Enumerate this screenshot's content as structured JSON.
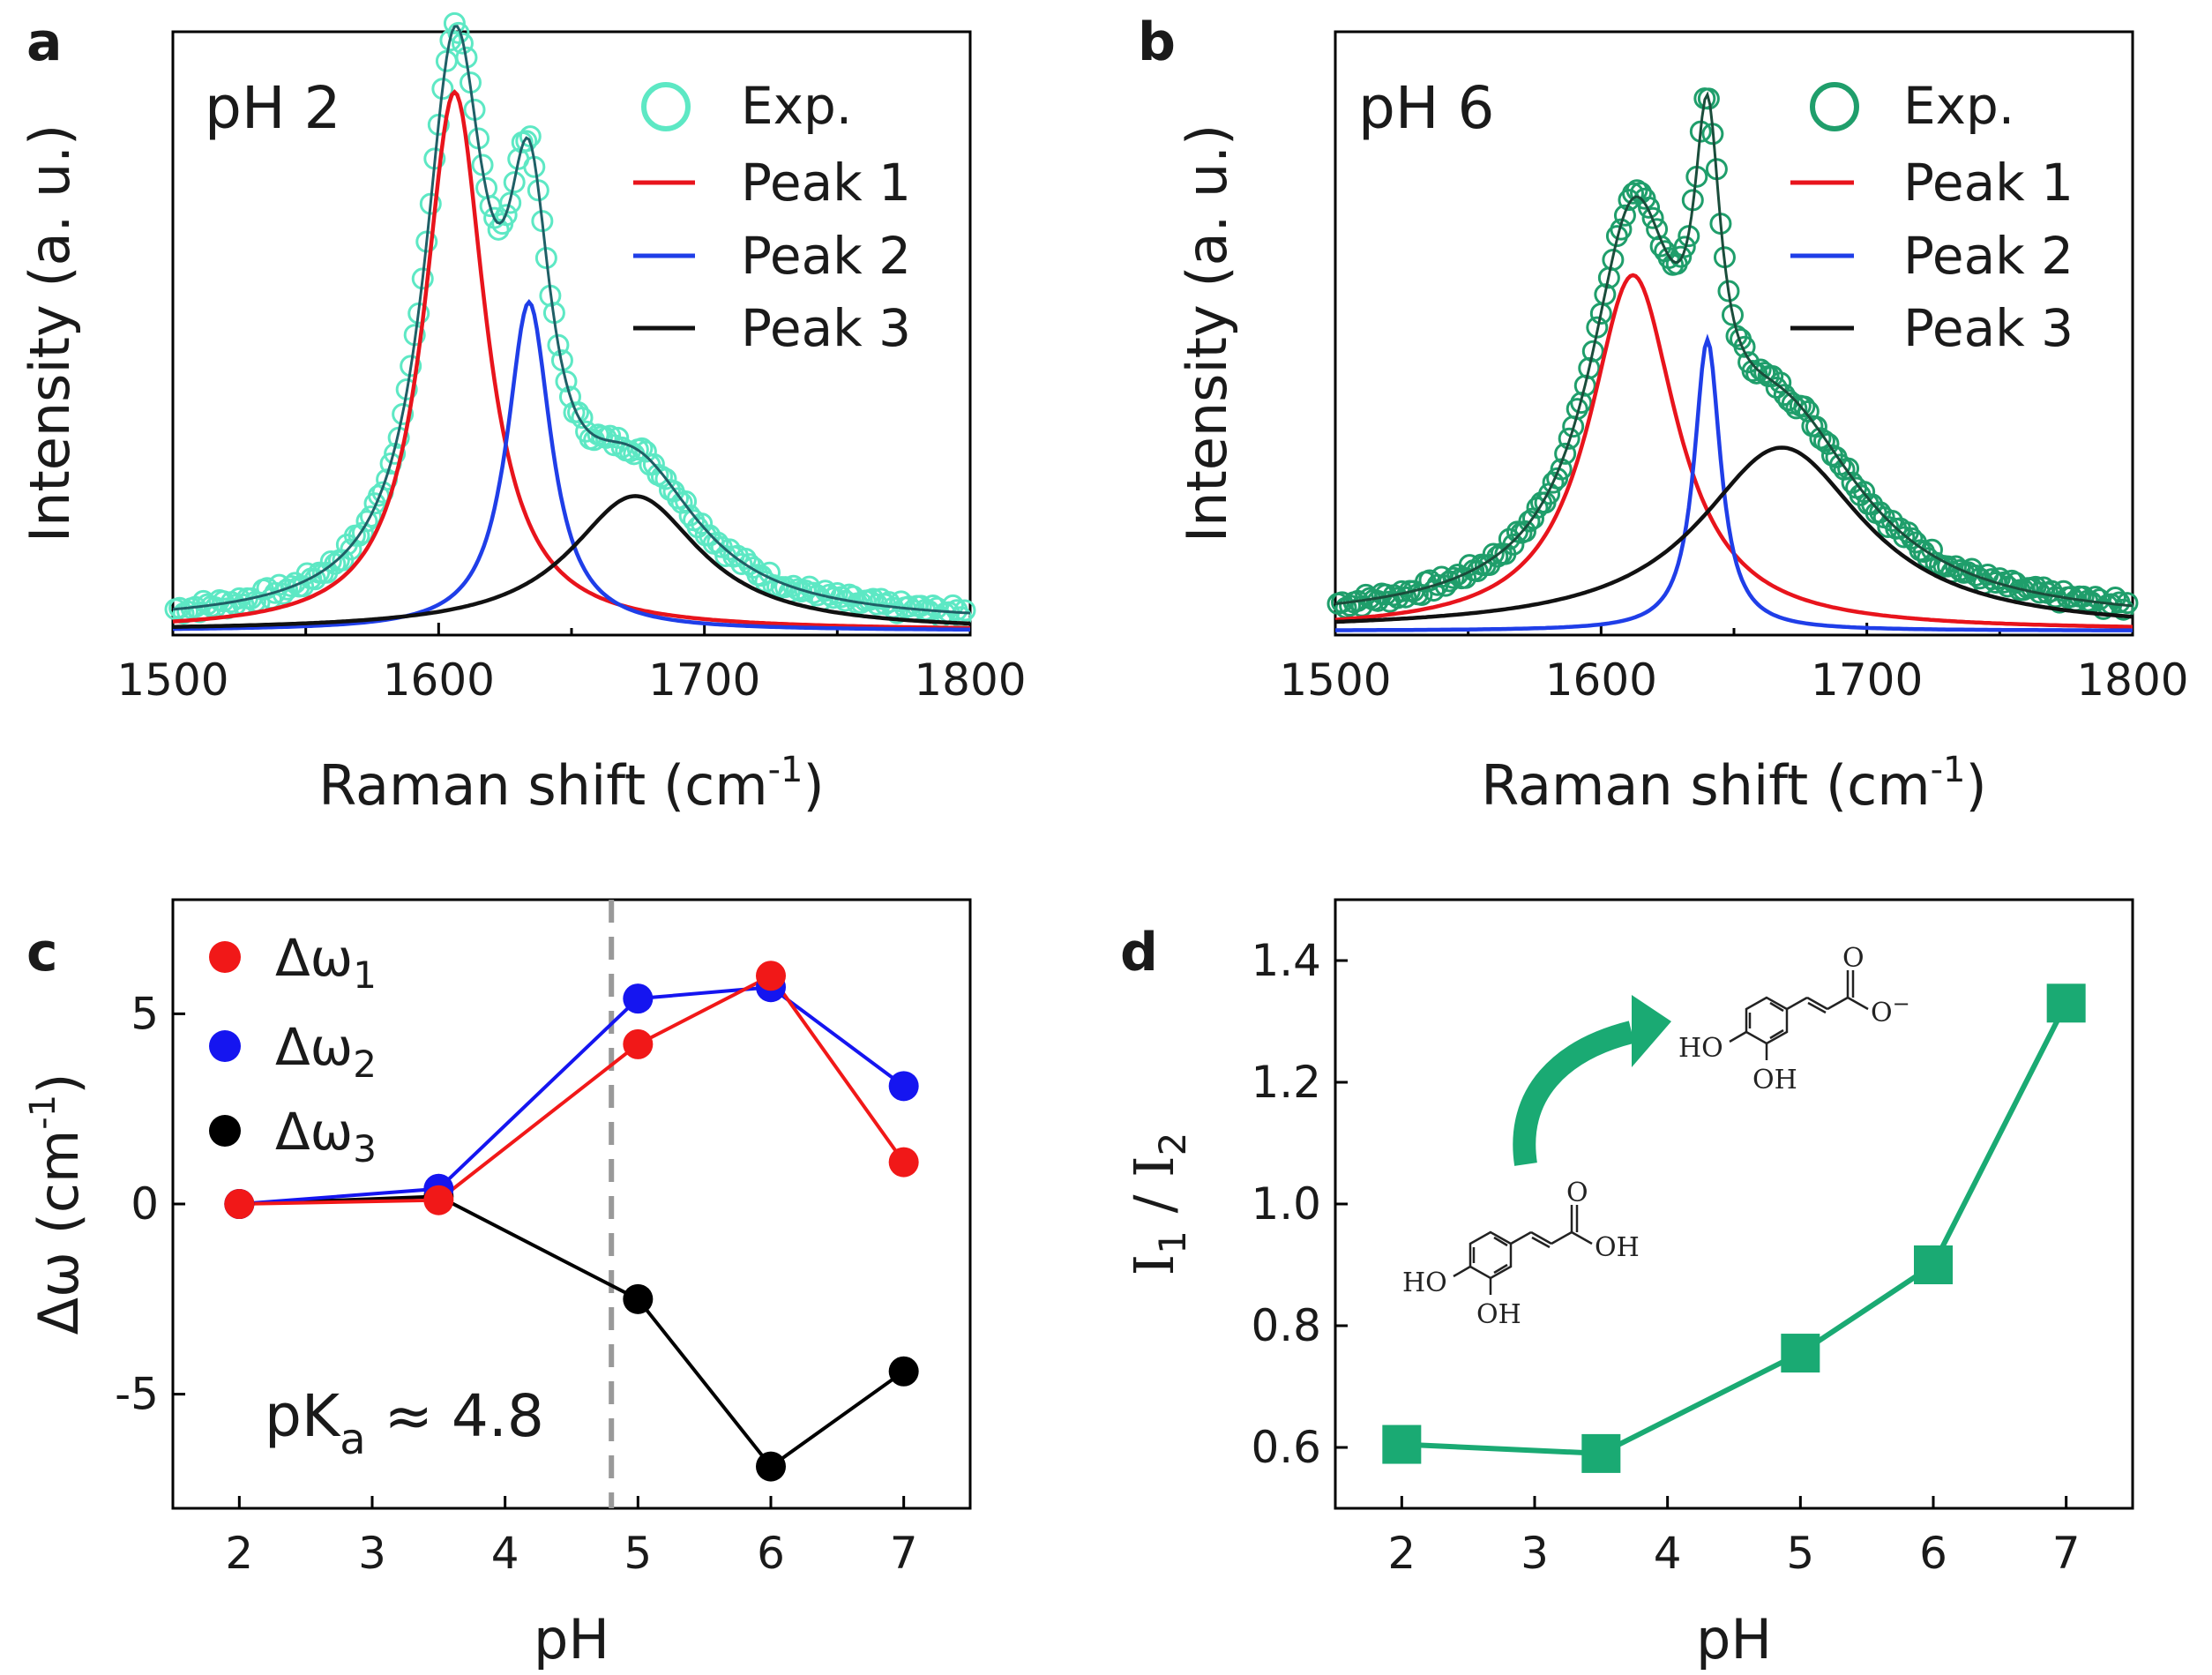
{
  "colors": {
    "exp_a": "#5de8c4",
    "exp_b": "#1f9e6b",
    "fit_a": "#1f5f66",
    "fit_b": "#1a4d3b",
    "peak1": "#e8141c",
    "peak2": "#1f3ee8",
    "peak3": "#111111",
    "green": "#1aaa73",
    "omega1": "#f11818",
    "omega2": "#1515f0",
    "omega3": "#000000",
    "dash": "#999999"
  },
  "chart_data": [
    {
      "panel": "a",
      "type": "line",
      "inset_label": "pH 2",
      "xlabel": "Raman shift (cm",
      "xlabel_sup": "-1",
      "xlabel_end": ")",
      "ylabel": "Intensity (a. u.)",
      "xlim": [
        1500,
        1800
      ],
      "ylim": [
        0,
        1.12
      ],
      "xticks": [
        "1500",
        "1600",
        "1700",
        "1800"
      ],
      "xtick_values": [
        1500,
        1600,
        1700,
        1800
      ],
      "legend": [
        "Exp.",
        "Peak 1",
        "Peak 2",
        "Peak 3"
      ],
      "peaks": [
        {
          "name": "Peak 1",
          "center": 1606,
          "hwhm": 14,
          "amp": 1.0
        },
        {
          "name": "Peak 2",
          "center": 1634,
          "hwhm": 10,
          "amp": 0.61
        },
        {
          "name": "Peak 3",
          "center": 1674,
          "hwhm": 30,
          "amp": 0.25
        }
      ],
      "baseline": 0.02
    },
    {
      "panel": "b",
      "type": "line",
      "inset_label": "pH 6",
      "xlabel": "Raman shift (cm",
      "xlabel_sup": "-1",
      "xlabel_end": ")",
      "ylabel": "Intensity (a. u.)",
      "xlim": [
        1500,
        1800
      ],
      "ylim": [
        0,
        1.12
      ],
      "xticks": [
        "1500",
        "1600",
        "1700",
        "1800"
      ],
      "xtick_values": [
        1500,
        1600,
        1700,
        1800
      ],
      "legend": [
        "Exp.",
        "Peak 1",
        "Peak 2",
        "Peak 3"
      ],
      "peaks": [
        {
          "name": "Peak 1",
          "center": 1612,
          "hwhm": 20,
          "amp": 0.66
        },
        {
          "name": "Peak 2",
          "center": 1640,
          "hwhm": 6,
          "amp": 0.54
        },
        {
          "name": "Peak 3",
          "center": 1668,
          "hwhm": 38,
          "amp": 0.34
        }
      ],
      "baseline": 0.02
    },
    {
      "panel": "c",
      "type": "line",
      "xlabel": "pH",
      "ylabel": "Δω (cm",
      "ylabel_sup": "-1",
      "ylabel_end": ")",
      "xlim": [
        1.5,
        7.5
      ],
      "ylim": [
        -8,
        8
      ],
      "xticks": [
        "2",
        "3",
        "4",
        "5",
        "6",
        "7"
      ],
      "xtick_values": [
        2,
        3,
        4,
        5,
        6,
        7
      ],
      "yticks": [
        "-5",
        "0",
        "5"
      ],
      "ytick_values": [
        -5,
        0,
        5
      ],
      "x": [
        2,
        3.5,
        5,
        6,
        7
      ],
      "series": [
        {
          "name": "Δω",
          "sub": "1",
          "values": [
            0,
            0.1,
            4.2,
            6.0,
            1.1
          ]
        },
        {
          "name": "Δω",
          "sub": "2",
          "values": [
            0,
            0.4,
            5.4,
            5.7,
            3.1
          ]
        },
        {
          "name": "Δω",
          "sub": "3",
          "values": [
            0,
            0.2,
            -2.5,
            -6.9,
            -4.4
          ]
        }
      ],
      "pka_x": 4.8,
      "annotation": "pK",
      "annotation_sub": "a",
      "annotation_end": " ≈ 4.8"
    },
    {
      "panel": "d",
      "type": "line",
      "xlabel": "pH",
      "ylabel_parts": [
        "I",
        "1",
        " / I",
        "2"
      ],
      "xlim": [
        1.5,
        7.5
      ],
      "ylim": [
        0.5,
        1.5
      ],
      "xticks": [
        "2",
        "3",
        "4",
        "5",
        "6",
        "7"
      ],
      "xtick_values": [
        2,
        3,
        4,
        5,
        6,
        7
      ],
      "yticks": [
        "0.6",
        "0.8",
        "1.0",
        "1.2",
        "1.4"
      ],
      "ytick_values": [
        0.6,
        0.8,
        1.0,
        1.2,
        1.4
      ],
      "x": [
        2,
        3.5,
        5,
        6,
        7
      ],
      "values": [
        0.605,
        0.59,
        0.755,
        0.9,
        1.33
      ]
    }
  ],
  "chem": {
    "acid": {
      "oh_carboxyl": "OH",
      "o_carbonyl": "O",
      "ho": "HO",
      "oh": "OH"
    },
    "anion": {
      "o_minus": "O",
      "minus": "−",
      "o_carbonyl": "O",
      "ho": "HO",
      "oh": "OH"
    }
  }
}
